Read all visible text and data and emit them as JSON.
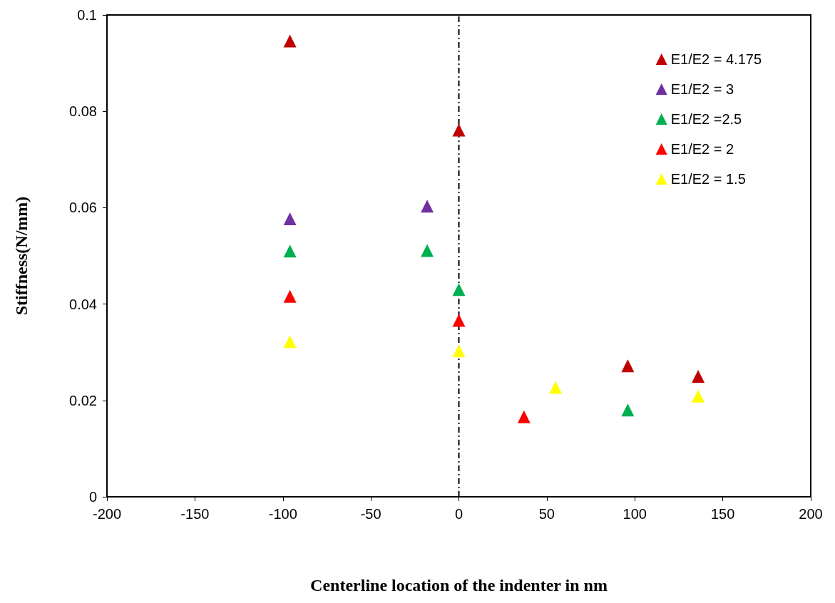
{
  "chart_data": {
    "type": "scatter",
    "xlabel": "Centerline location of the indenter in nm",
    "ylabel": "Stiffness(N/mm)",
    "xlim": [
      -200,
      200
    ],
    "xticks": [
      -200,
      -150,
      -100,
      -50,
      0,
      50,
      100,
      150,
      200
    ],
    "ylim": [
      0,
      0.1
    ],
    "yticks": [
      0,
      0.02,
      0.04,
      0.06,
      0.08,
      0.1
    ],
    "grid": false,
    "legend": "top right",
    "marker": "triangle",
    "ref_lines": [
      {
        "axis": "x",
        "value": 0,
        "color": "#000000",
        "line_style": "dashed"
      }
    ],
    "series": [
      {
        "name": "E1/E2 = 4.175",
        "color": "#c00000",
        "x": [
          -96,
          0,
          96,
          136
        ],
        "values": [
          0.0946,
          0.0761,
          0.0272,
          0.025
        ]
      },
      {
        "name": "E1/E2 = 3",
        "color": "#7030a0",
        "x": [
          -96,
          -18
        ],
        "values": [
          0.0577,
          0.0603
        ]
      },
      {
        "name": "E1/E2 =2.5",
        "color": "#00b050",
        "x": [
          -96,
          -18,
          0,
          96
        ],
        "values": [
          0.051,
          0.0511,
          0.043,
          0.018
        ]
      },
      {
        "name": "E1/E2 = 2",
        "color": "#ff0000",
        "x": [
          -96,
          0,
          37
        ],
        "values": [
          0.0416,
          0.0366,
          0.0166
        ]
      },
      {
        "name": "E1/E2 = 1.5",
        "color": "#ffff00",
        "x": [
          -96,
          0,
          55,
          136
        ],
        "values": [
          0.0322,
          0.0303,
          0.0227,
          0.0209
        ]
      }
    ]
  }
}
